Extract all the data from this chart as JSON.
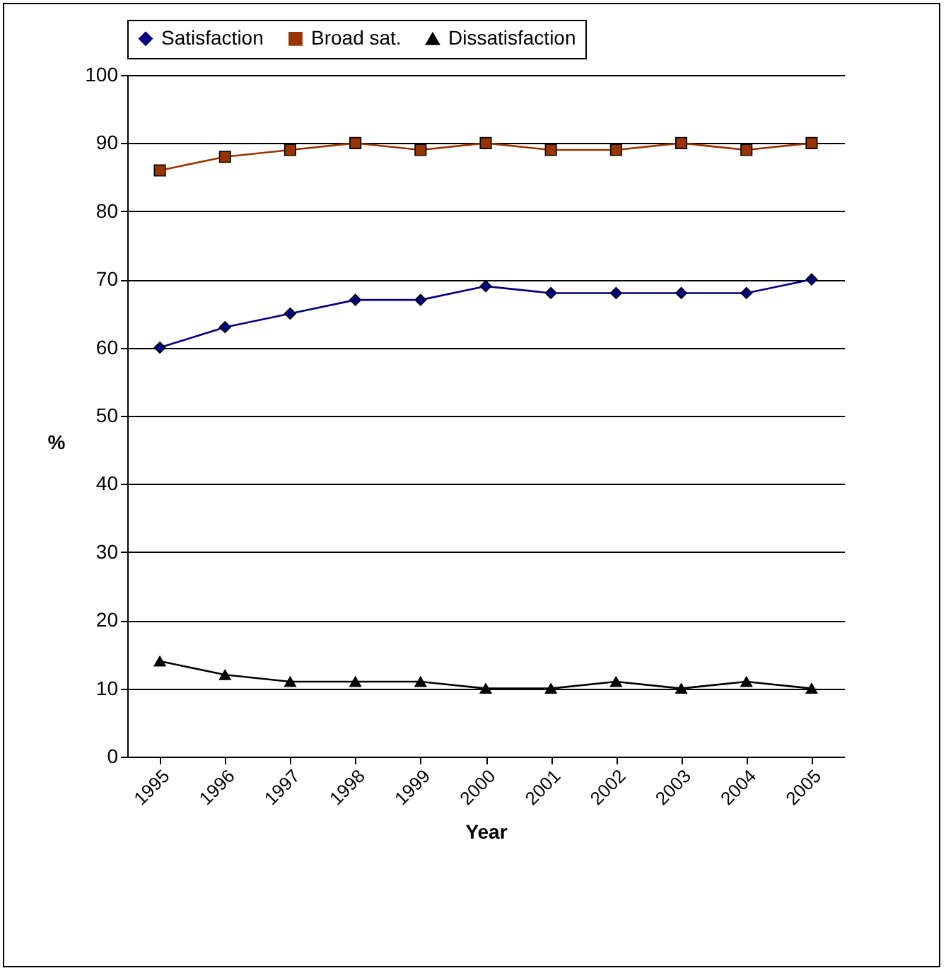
{
  "chart_data": {
    "type": "line",
    "xlabel": "Year",
    "ylabel": "%",
    "categories": [
      "1995",
      "1996",
      "1997",
      "1998",
      "1999",
      "2000",
      "2001",
      "2002",
      "2003",
      "2004",
      "2005"
    ],
    "series": [
      {
        "name": "Satisfaction",
        "color": "#000080",
        "marker": "diamond",
        "values": [
          60,
          63,
          65,
          67,
          67,
          69,
          68,
          68,
          68,
          68,
          70
        ]
      },
      {
        "name": "Broad sat.",
        "color": "#993300",
        "marker": "square",
        "values": [
          86,
          88,
          89,
          90,
          89,
          90,
          89,
          89,
          90,
          89,
          90
        ]
      },
      {
        "name": "Dissatisfaction",
        "color": "#000000",
        "marker": "triangle",
        "values": [
          14,
          12,
          11,
          11,
          11,
          10,
          10,
          11,
          10,
          11,
          10
        ]
      }
    ],
    "ylim": [
      0,
      100
    ],
    "yticks": [
      0,
      10,
      20,
      30,
      40,
      50,
      60,
      70,
      80,
      90,
      100
    ],
    "grid": "y",
    "legend": "top",
    "line_style": "solid"
  }
}
